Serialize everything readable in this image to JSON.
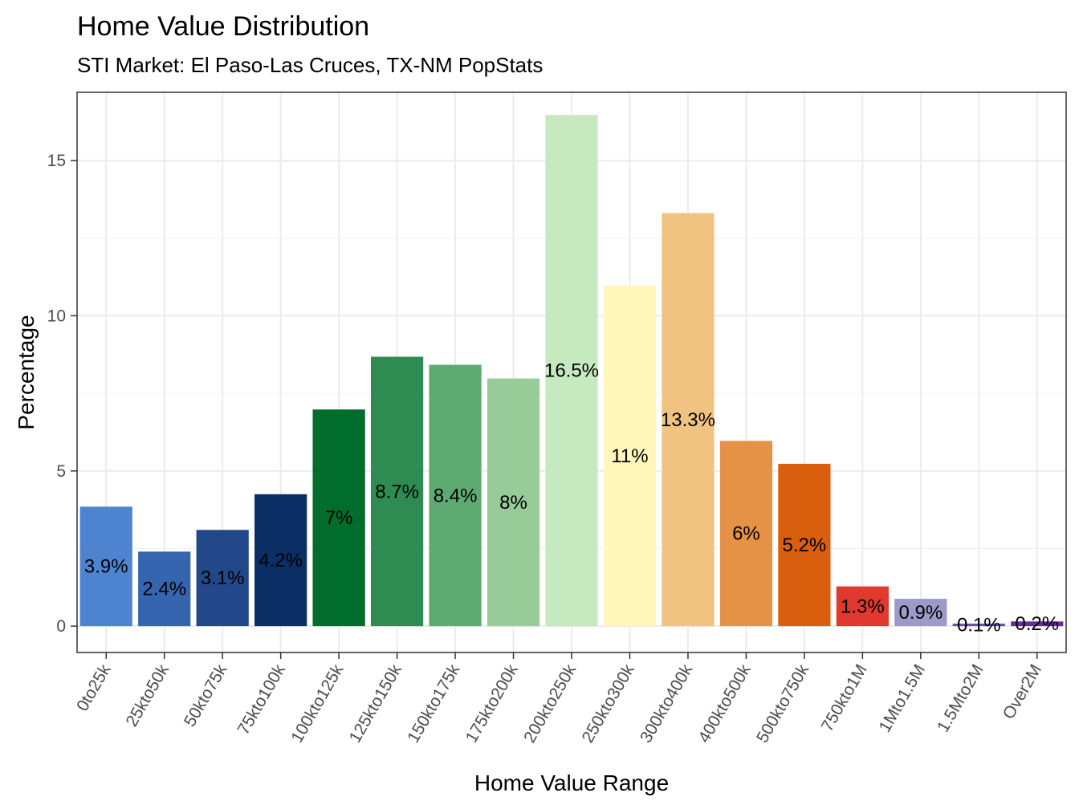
{
  "chart_data": {
    "type": "bar",
    "title": "Home Value Distribution",
    "subtitle": "STI Market: El Paso-Las Cruces, TX-NM PopStats",
    "xlabel": "Home Value Range",
    "ylabel": "Percentage",
    "ylim": [
      -0.85,
      17.2
    ],
    "yticks": [
      0,
      5,
      10,
      15
    ],
    "grid": true,
    "legend": "none",
    "categories": [
      "0to25k",
      "25kto50k",
      "50kto75k",
      "75kto100k",
      "100kto125k",
      "125kto150k",
      "150kto175k",
      "175kto200k",
      "200kto250k",
      "250kto300k",
      "300kto400k",
      "400kto500k",
      "500kto750k",
      "750kto1M",
      "1Mto1.5M",
      "1.5Mto2M",
      "Over2M"
    ],
    "values": [
      3.85,
      2.4,
      3.1,
      4.25,
      6.98,
      8.68,
      8.42,
      7.98,
      16.47,
      10.98,
      13.31,
      5.97,
      5.23,
      1.28,
      0.88,
      0.08,
      0.15
    ],
    "labels": [
      "3.9%",
      "2.4%",
      "3.1%",
      "4.2%",
      "7%",
      "8.7%",
      "8.4%",
      "8%",
      "16.5%",
      "11%",
      "13.3%",
      "6%",
      "5.2%",
      "1.3%",
      "0.9%",
      "0.1%",
      "0.2%"
    ],
    "colors": [
      "#4E84CF",
      "#3565AE",
      "#22488A",
      "#0B2E64",
      "#006D2C",
      "#2E8B51",
      "#5FAA73",
      "#98CB98",
      "#C7E9C0",
      "#FFF7BC",
      "#F0C380",
      "#E59247",
      "#D95F0E",
      "#E03A2F",
      "#9E9AC8",
      "#6A51A3",
      "#6A2BA2"
    ]
  }
}
